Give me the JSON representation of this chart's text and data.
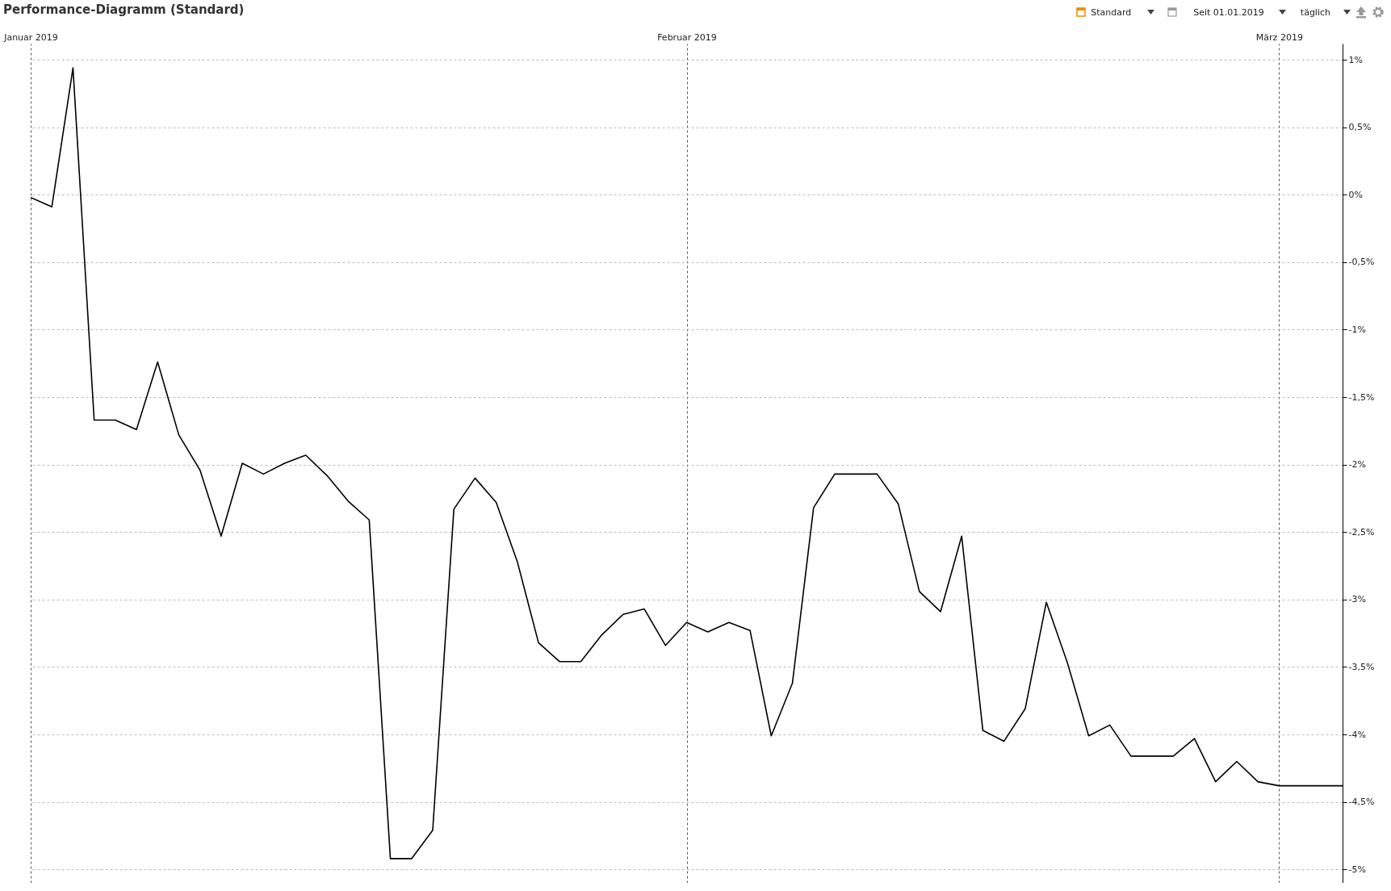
{
  "chart_data": {
    "type": "line",
    "title": "Performance-Diagramm (Standard)",
    "annotations": [
      "Standard",
      "Seit 01.01.2019",
      "täglich"
    ],
    "x": [
      "2019-01-01",
      "2019-01-02",
      "2019-01-03",
      "2019-01-04",
      "2019-01-05",
      "2019-01-06",
      "2019-01-07",
      "2019-01-08",
      "2019-01-09",
      "2019-01-10",
      "2019-01-11",
      "2019-01-12",
      "2019-01-13",
      "2019-01-14",
      "2019-01-15",
      "2019-01-16",
      "2019-01-17",
      "2019-01-18",
      "2019-01-19",
      "2019-01-20",
      "2019-01-21",
      "2019-01-22",
      "2019-01-23",
      "2019-01-24",
      "2019-01-25",
      "2019-01-26",
      "2019-01-27",
      "2019-01-28",
      "2019-01-29",
      "2019-01-30",
      "2019-01-31",
      "2019-02-01",
      "2019-02-02",
      "2019-02-03",
      "2019-02-04",
      "2019-02-05",
      "2019-02-06",
      "2019-02-07",
      "2019-02-08",
      "2019-02-09",
      "2019-02-10",
      "2019-02-11",
      "2019-02-12",
      "2019-02-13",
      "2019-02-14",
      "2019-02-15",
      "2019-02-16",
      "2019-02-17",
      "2019-02-18",
      "2019-02-19",
      "2019-02-20",
      "2019-02-21",
      "2019-02-22",
      "2019-02-23",
      "2019-02-24",
      "2019-02-25",
      "2019-02-26",
      "2019-02-27",
      "2019-02-28",
      "2019-03-01",
      "2019-03-02",
      "2019-03-03",
      "2019-03-04"
    ],
    "series": [
      {
        "color": "#000000",
        "values": [
          -0.02,
          -0.09,
          0.94,
          -1.67,
          -1.67,
          -1.74,
          -1.24,
          -1.78,
          -2.04,
          -2.53,
          -1.99,
          -2.07,
          -1.99,
          -1.93,
          -2.08,
          -2.27,
          -2.41,
          -4.92,
          -4.92,
          -4.71,
          -2.33,
          -2.1,
          -2.28,
          -2.72,
          -3.32,
          -3.46,
          -3.46,
          -3.26,
          -3.11,
          -3.07,
          -3.34,
          -3.17,
          -3.24,
          -3.17,
          -3.23,
          -4.01,
          -3.62,
          -2.32,
          -2.07,
          -2.07,
          -2.07,
          -2.29,
          -2.94,
          -3.09,
          -2.53,
          -3.97,
          -4.05,
          -3.81,
          -3.02,
          -3.47,
          -4.01,
          -3.93,
          -4.16,
          -4.16,
          -4.16,
          -4.03,
          -4.35,
          -4.2,
          -4.35,
          -4.38,
          -4.38,
          -4.38,
          -4.38
        ]
      }
    ],
    "xlim": [
      "2019-01-01",
      "2019-03-04"
    ],
    "xticks": [
      {
        "value": "2019-01-01",
        "label": "Januar 2019"
      },
      {
        "value": "2019-02-01",
        "label": "Februar 2019"
      },
      {
        "value": "2019-03-01",
        "label": "März 2019"
      }
    ],
    "ylim": [
      -5.1,
      1.12
    ],
    "yticks": [
      {
        "value": 1,
        "label": "1%"
      },
      {
        "value": 0.5,
        "label": "0,5%"
      },
      {
        "value": 0,
        "label": "0%"
      },
      {
        "value": -0.5,
        "label": "-0,5%"
      },
      {
        "value": -1,
        "label": "-1%"
      },
      {
        "value": -1.5,
        "label": "-1,5%"
      },
      {
        "value": -2,
        "label": "-2%"
      },
      {
        "value": -2.5,
        "label": "-2,5%"
      },
      {
        "value": -3,
        "label": "-3%"
      },
      {
        "value": -3.5,
        "label": "-3,5%"
      },
      {
        "value": -4,
        "label": "-4%"
      },
      {
        "value": -4.5,
        "label": "-4,5%"
      },
      {
        "value": -5,
        "label": "-5%"
      }
    ],
    "grid": true,
    "marker": "none",
    "line_style": "solid"
  }
}
